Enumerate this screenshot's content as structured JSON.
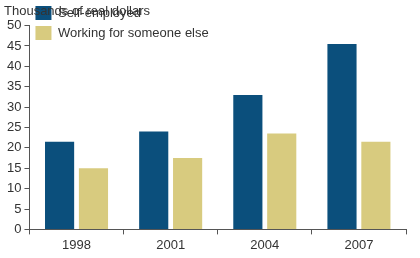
{
  "chart_data": {
    "type": "bar",
    "ylabel": "Thousands of real dollars",
    "categories": [
      "1998",
      "2001",
      "2004",
      "2007"
    ],
    "series": [
      {
        "name": "Self-employed",
        "color": "#0b4f7c",
        "values": [
          21.5,
          24,
          33,
          45.5
        ]
      },
      {
        "name": "Working for someone else",
        "color": "#d8cb7f",
        "values": [
          15,
          17.5,
          23.5,
          21.5
        ]
      }
    ],
    "ylim": [
      0,
      50
    ],
    "yticks": [
      0,
      5,
      10,
      15,
      20,
      25,
      30,
      35,
      40,
      45,
      50
    ],
    "grid": false,
    "legend": "upper left"
  }
}
